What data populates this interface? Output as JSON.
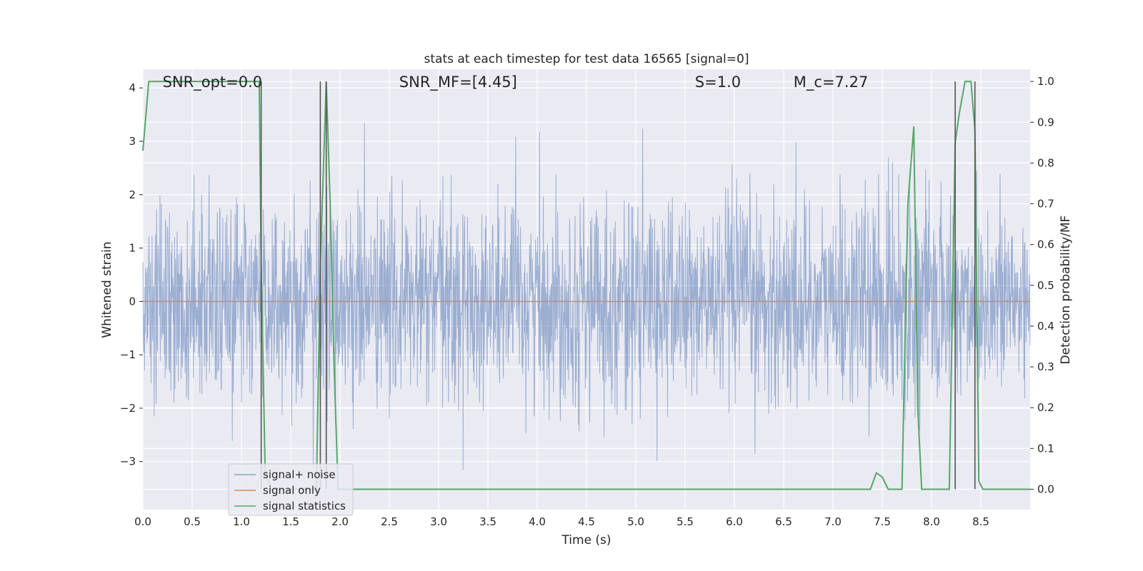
{
  "chart_data": {
    "type": "line",
    "title": "stats at each timestep for test data 16565 [signal=0]",
    "xlabel": "Time (s)",
    "ylabel_left": "Whitened strain",
    "ylabel_right": "Detection probability/MF",
    "xlim": [
      0.0,
      9.0
    ],
    "ylim_left": [
      -3.9,
      4.35
    ],
    "ylim_right": [
      -0.05,
      1.03
    ],
    "x_ticks": [
      "0.0",
      "0.5",
      "1.0",
      "1.5",
      "2.0",
      "2.5",
      "3.0",
      "3.5",
      "4.0",
      "4.5",
      "5.0",
      "5.5",
      "6.0",
      "6.5",
      "7.0",
      "7.5",
      "8.0",
      "8.5"
    ],
    "x_tick_values": [
      0.0,
      0.5,
      1.0,
      1.5,
      2.0,
      2.5,
      3.0,
      3.5,
      4.0,
      4.5,
      5.0,
      5.5,
      6.0,
      6.5,
      7.0,
      7.5,
      8.0,
      8.5
    ],
    "y_ticks_left": [
      "4",
      "3",
      "2",
      "1",
      "0",
      "−1",
      "−2",
      "−3"
    ],
    "y_tick_values_left": [
      4,
      3,
      2,
      1,
      0,
      -1,
      -2,
      -3
    ],
    "y_ticks_right": [
      "1.0",
      "0.9",
      "0.8",
      "0.7",
      "0.6",
      "0.5",
      "0.4",
      "0.3",
      "0.2",
      "0.1",
      "0.0"
    ],
    "y_tick_values_right": [
      1.0,
      0.9,
      0.8,
      0.7,
      0.6,
      0.5,
      0.4,
      0.3,
      0.2,
      0.1,
      0.0
    ],
    "grid": true,
    "legend_position": "lower-left",
    "annotations": [
      {
        "text": "SNR_opt=0.0",
        "x": 0.2
      },
      {
        "text": "SNR_MF=[4.45]",
        "x": 2.6
      },
      {
        "text": "S=1.0",
        "x": 5.6
      },
      {
        "text": "M_c=7.27",
        "x": 6.6
      }
    ],
    "series": [
      {
        "name": "signal+ noise",
        "color": "#4c72b0",
        "axis": "left",
        "style": "dense noise band, roughly within -2 to 2 with spikes to about 4 and -3.4"
      },
      {
        "name": "signal only",
        "color": "#dd8452",
        "axis": "left",
        "x": [
          0.0,
          9.0
        ],
        "y": [
          0.0,
          0.0
        ]
      },
      {
        "name": "signal statistics",
        "color": "#55a868",
        "axis": "right",
        "x": [
          0.0,
          0.06,
          0.12,
          0.2,
          1.0,
          1.18,
          1.2,
          1.24,
          1.3,
          1.7,
          1.76,
          1.8,
          1.86,
          1.9,
          1.94,
          1.98,
          2.0,
          2.06,
          2.1,
          7.0,
          7.38,
          7.44,
          7.5,
          7.56,
          7.7,
          7.76,
          7.82,
          7.86,
          7.9,
          8.0,
          8.1,
          8.18,
          8.24,
          8.28,
          8.34,
          8.4,
          8.44,
          8.48,
          8.52,
          8.6,
          9.0
        ],
        "y": [
          0.83,
          1.0,
          1.0,
          1.0,
          1.0,
          1.0,
          0.55,
          0.05,
          0.0,
          0.0,
          0.0,
          0.55,
          1.0,
          0.7,
          0.3,
          0.0,
          0.0,
          0.0,
          0.0,
          0.0,
          0.0,
          0.04,
          0.03,
          0.0,
          0.0,
          0.7,
          0.89,
          0.2,
          0.0,
          0.0,
          0.0,
          0.0,
          0.85,
          0.92,
          1.0,
          1.0,
          0.88,
          0.02,
          0.0,
          0.0,
          0.0
        ]
      }
    ],
    "vertical_markers": [
      1.2,
      1.8,
      1.86,
      8.24,
      8.44
    ]
  }
}
